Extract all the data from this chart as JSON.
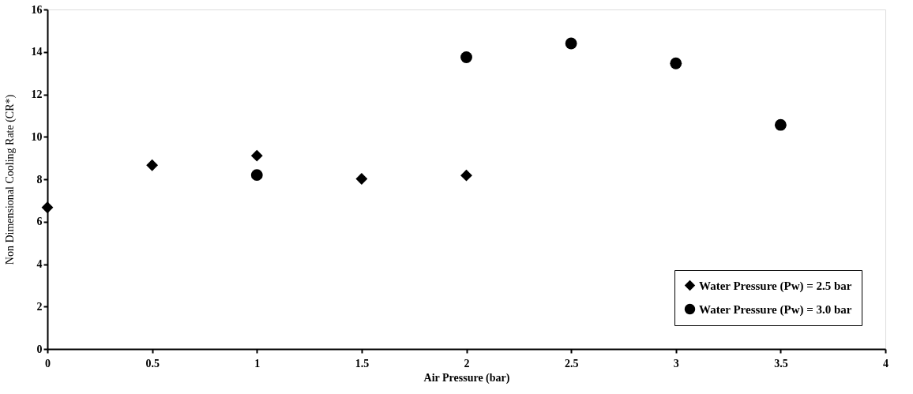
{
  "chart_data": {
    "type": "scatter",
    "xlabel": "Air Pressure (bar)",
    "ylabel": "Non Dimensional Cooling Rate (CR*)",
    "xlim": [
      0,
      4
    ],
    "xticks": [
      0,
      0.5,
      1,
      1.5,
      2,
      2.5,
      3,
      3.5,
      4
    ],
    "ylim": [
      0,
      16
    ],
    "yticks": [
      0,
      2,
      4,
      6,
      8,
      10,
      12,
      14,
      16
    ],
    "grid": false,
    "legend": "bottom right",
    "series": [
      {
        "name": "Water Pressure (Pw) = 2.5 bar",
        "color": "#000000",
        "marker": "diamond",
        "x": [
          0,
          0.5,
          1,
          1.5,
          2
        ],
        "values": [
          6.67,
          8.66,
          9.11,
          8.02,
          8.18
        ]
      },
      {
        "name": "Water Pressure (Pw) = 3.0 bar",
        "color": "#000000",
        "marker": "circle",
        "x": [
          1,
          2,
          2.5,
          3,
          3.5
        ],
        "values": [
          8.2,
          13.75,
          14.4,
          13.46,
          10.56
        ]
      }
    ]
  }
}
